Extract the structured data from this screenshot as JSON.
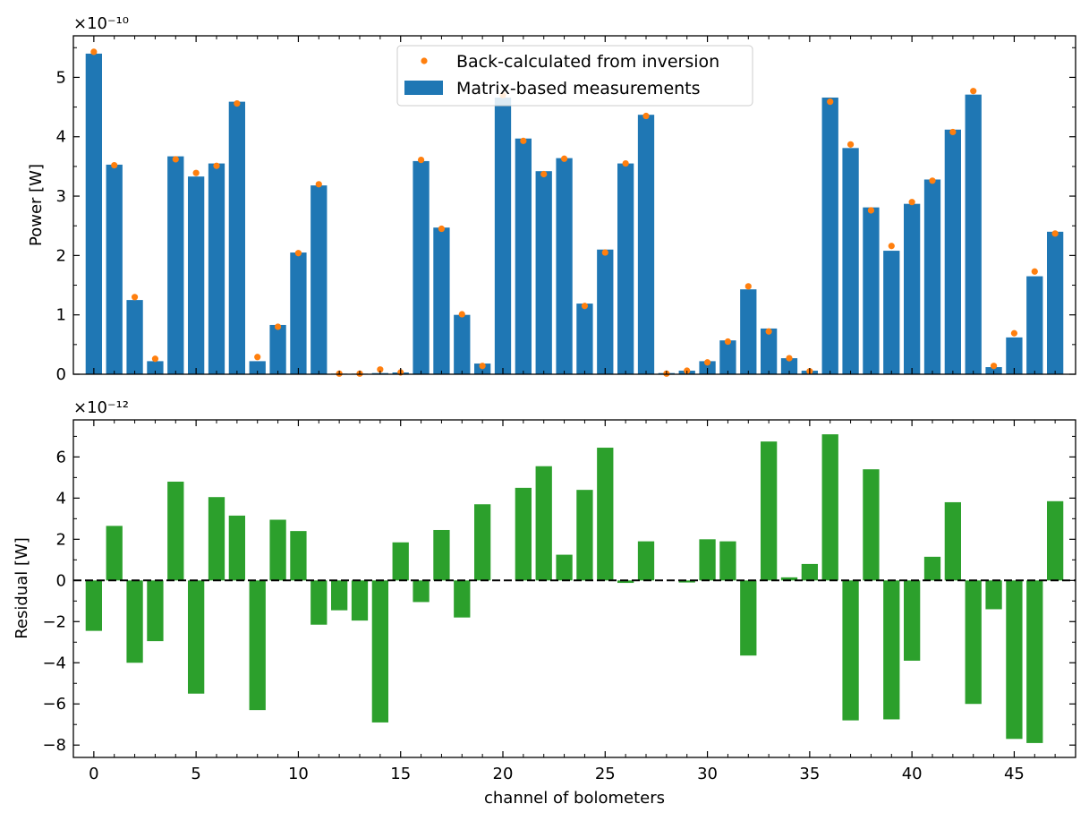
{
  "chart_data": [
    {
      "type": "bar",
      "panel": "top",
      "ylabel": "Power [W]",
      "offset_text": "×10⁻¹⁰",
      "ylim": [
        0,
        5.7
      ],
      "yticks": [
        0,
        1,
        2,
        3,
        4,
        5
      ],
      "xlim": [
        -1,
        48
      ],
      "legend_placement": "upper-center",
      "colors": {
        "bars": "#1f77b4",
        "points": "#ff7f0e"
      },
      "series": [
        {
          "name": "Matrix-based measurements",
          "kind": "bar",
          "values": [
            5.4,
            3.53,
            1.25,
            0.22,
            3.67,
            3.33,
            3.55,
            4.59,
            0.22,
            0.83,
            2.05,
            3.18,
            0.01,
            0.01,
            0.02,
            0.03,
            3.59,
            2.47,
            1.0,
            0.18,
            4.66,
            3.97,
            3.42,
            3.64,
            1.19,
            2.1,
            3.55,
            4.37,
            0.02,
            0.06,
            0.22,
            0.57,
            1.43,
            0.77,
            0.27,
            0.06,
            4.66,
            3.81,
            2.81,
            2.08,
            2.87,
            3.28,
            4.12,
            4.71,
            0.12,
            0.62,
            1.65,
            2.4
          ]
        },
        {
          "name": "Back-calculated from inversion",
          "kind": "scatter",
          "values": [
            5.43,
            3.52,
            1.3,
            0.26,
            3.62,
            3.39,
            3.51,
            4.56,
            0.29,
            0.8,
            2.04,
            3.2,
            0.01,
            0.01,
            0.08,
            0.03,
            3.61,
            2.45,
            1.01,
            0.14,
            4.7,
            3.93,
            3.37,
            3.63,
            1.15,
            2.05,
            3.55,
            4.35,
            0.01,
            0.06,
            0.2,
            0.55,
            1.48,
            0.72,
            0.27,
            0.05,
            4.59,
            3.87,
            2.76,
            2.16,
            2.9,
            3.26,
            4.08,
            4.77,
            0.14,
            0.69,
            1.73,
            2.37
          ]
        }
      ]
    },
    {
      "type": "bar",
      "panel": "bottom",
      "ylabel": "Residual [W]",
      "xlabel": "channel of bolometers",
      "offset_text": "×10⁻¹²",
      "ylim": [
        -8.6,
        7.8
      ],
      "yticks": [
        -8,
        -6,
        -4,
        -2,
        0,
        2,
        4,
        6
      ],
      "xlim": [
        -1,
        48
      ],
      "xticks": [
        0,
        5,
        10,
        15,
        20,
        25,
        30,
        35,
        40,
        45
      ],
      "colors": {
        "bars": "#2ca02c",
        "zero_line": "#000000"
      },
      "values": [
        -2.45,
        2.65,
        -4.0,
        -2.95,
        4.8,
        -5.5,
        4.05,
        3.15,
        -6.3,
        2.95,
        2.4,
        -2.15,
        -1.45,
        -1.95,
        -6.9,
        1.85,
        -1.05,
        2.45,
        -1.8,
        3.7,
        0,
        4.5,
        5.55,
        1.25,
        4.4,
        6.45,
        -0.12,
        1.9,
        0,
        -0.1,
        2.0,
        1.9,
        -3.65,
        6.75,
        0.15,
        0.8,
        7.1,
        -6.8,
        5.4,
        -6.75,
        -3.9,
        1.15,
        3.8,
        -6.0,
        -1.4,
        -7.7,
        -7.9,
        3.85
      ]
    }
  ]
}
